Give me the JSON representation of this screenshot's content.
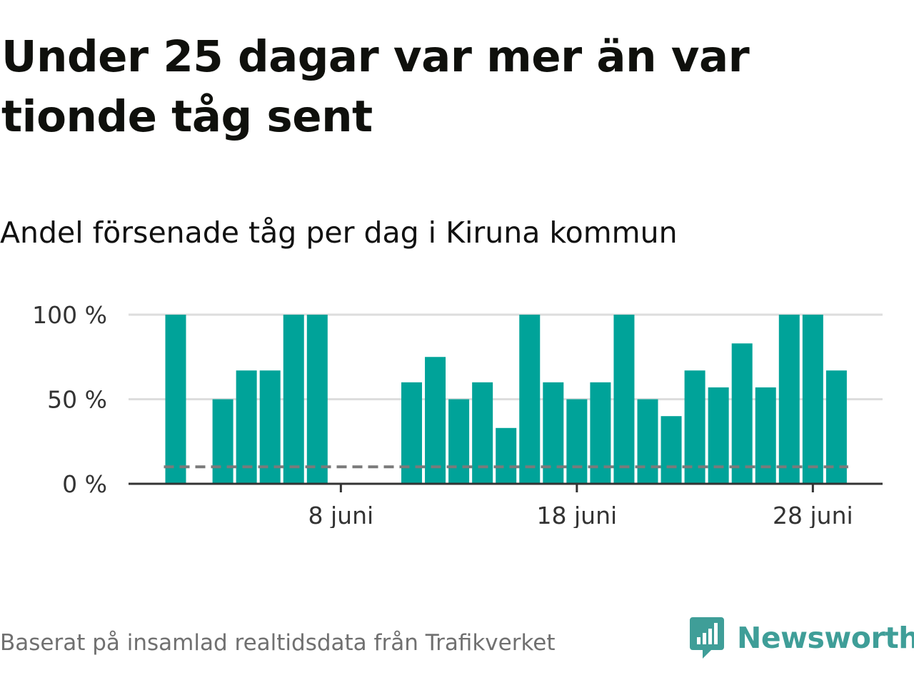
{
  "title": "Under 25 dagar var mer än var tionde tåg sent",
  "subtitle": "Andel försenade tåg per dag i Kiruna kommun",
  "source": "Baserat på insamlad realtidsdata från Trafikverket",
  "brand": "Newsworthy",
  "colors": {
    "bar": "#00a399",
    "brand": "#3f9e98",
    "reference": "#7a7a7a",
    "grid": "#dddddd",
    "axis": "#333333"
  },
  "chart_data": {
    "type": "bar",
    "x": [
      "2024-06-01",
      "2024-06-02",
      "2024-06-03",
      "2024-06-04",
      "2024-06-05",
      "2024-06-06",
      "2024-06-07",
      "2024-06-08",
      "2024-06-09",
      "2024-06-10",
      "2024-06-11",
      "2024-06-12",
      "2024-06-13",
      "2024-06-14",
      "2024-06-15",
      "2024-06-16",
      "2024-06-17",
      "2024-06-18",
      "2024-06-19",
      "2024-06-20",
      "2024-06-21",
      "2024-06-22",
      "2024-06-23",
      "2024-06-24",
      "2024-06-25",
      "2024-06-26",
      "2024-06-27",
      "2024-06-28",
      "2024-06-29"
    ],
    "values": [
      100,
      null,
      50,
      67,
      67,
      100,
      100,
      null,
      null,
      null,
      60,
      75,
      50,
      60,
      33,
      100,
      60,
      50,
      60,
      100,
      50,
      40,
      67,
      57,
      83,
      57,
      100,
      100,
      67
    ],
    "ylim": [
      0,
      100
    ],
    "y_ticks": [
      "0 %",
      "50 %",
      "100 %"
    ],
    "y_tick_values": [
      0,
      50,
      100
    ],
    "x_ticks": [
      "8 juni",
      "18 juni",
      "28 juni"
    ],
    "x_tick_values": [
      "2024-06-08",
      "2024-06-18",
      "2024-06-28"
    ],
    "reference_line": 10,
    "grid": true
  }
}
